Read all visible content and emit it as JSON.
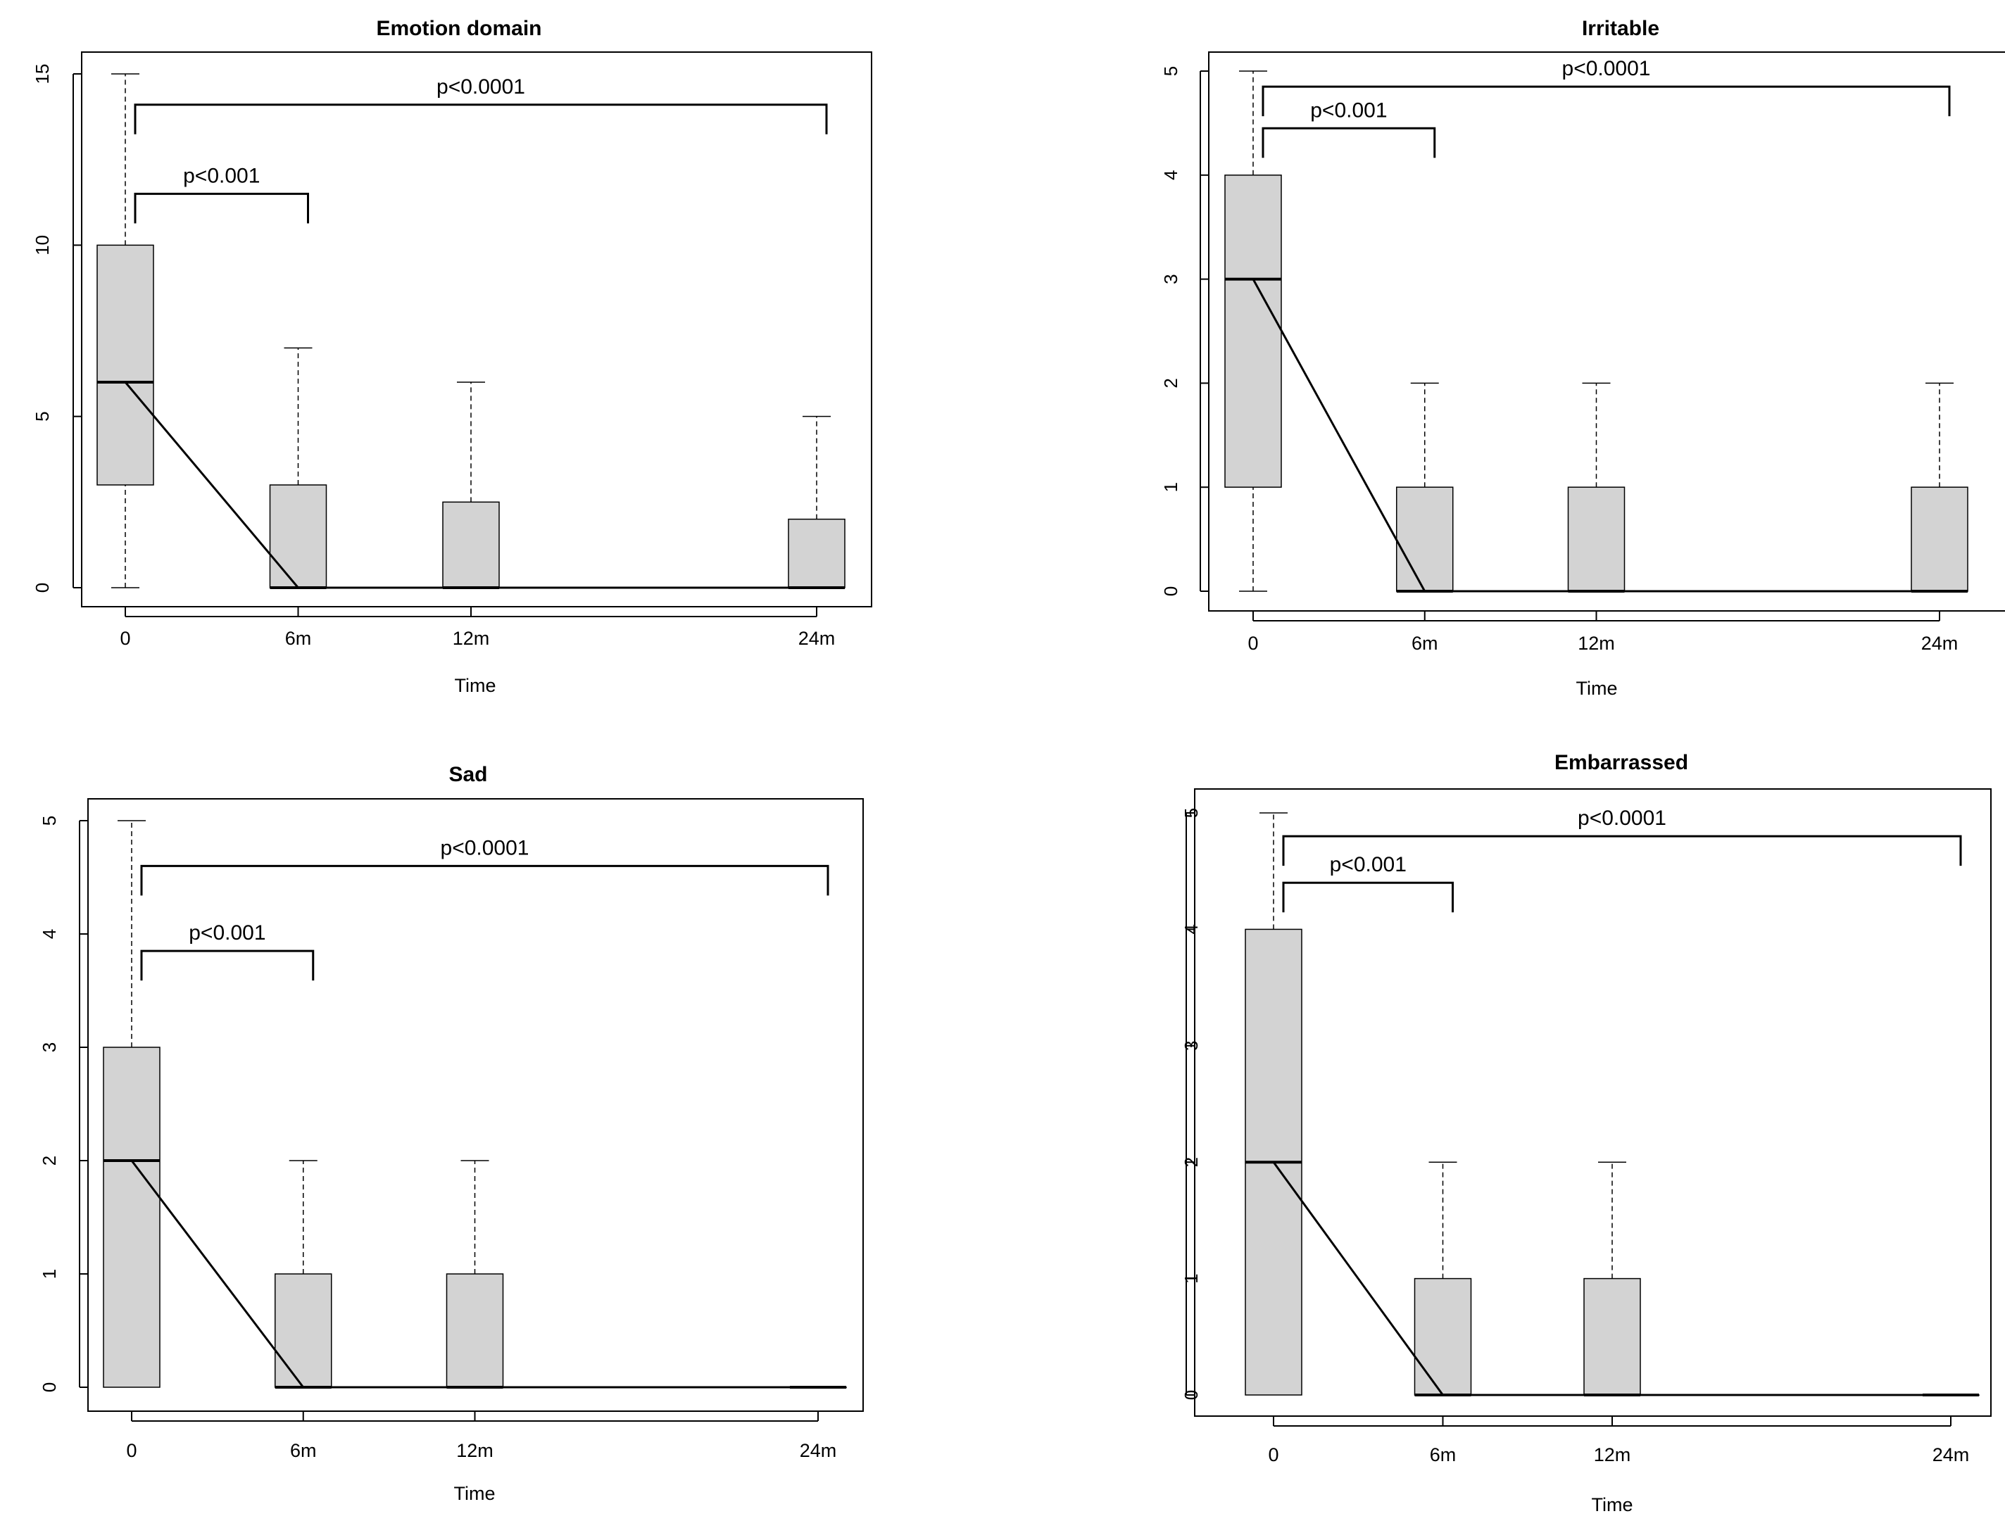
{
  "chart_data": [
    {
      "type": "boxplot",
      "title": "Emotion domain",
      "xlabel": "Time",
      "ylabel": "",
      "ylim": [
        0,
        15
      ],
      "yticks": [
        0,
        5,
        10,
        15
      ],
      "categories": [
        "0",
        "6m",
        "12m",
        "24m"
      ],
      "x_positions": [
        0,
        6,
        12,
        24
      ],
      "boxes": [
        {
          "min": 0,
          "q1": 3,
          "median": 6,
          "q3": 10,
          "max": 15
        },
        {
          "min": 0,
          "q1": 0,
          "median": 0,
          "q3": 3,
          "max": 7
        },
        {
          "min": 0,
          "q1": 0,
          "median": 0,
          "q3": 2.5,
          "max": 6
        },
        {
          "min": 0,
          "q1": 0,
          "median": 0,
          "q3": 2,
          "max": 5
        }
      ],
      "trend_line": [
        6,
        0,
        0,
        0
      ],
      "annotations": [
        {
          "text": "p<0.001",
          "from": 0,
          "to": 6,
          "level": 11.5
        },
        {
          "text": "p<0.0001",
          "from": 0,
          "to": 24,
          "level": 14.1
        }
      ]
    },
    {
      "type": "boxplot",
      "title": "Irritable",
      "xlabel": "Time",
      "ylabel": "",
      "ylim": [
        0,
        5
      ],
      "yticks": [
        0,
        1,
        2,
        3,
        4,
        5
      ],
      "categories": [
        "0",
        "6m",
        "12m",
        "24m"
      ],
      "x_positions": [
        0,
        6,
        12,
        24
      ],
      "boxes": [
        {
          "min": 0,
          "q1": 1,
          "median": 3,
          "q3": 4,
          "max": 5
        },
        {
          "min": 0,
          "q1": 0,
          "median": 0,
          "q3": 1,
          "max": 2
        },
        {
          "min": 0,
          "q1": 0,
          "median": 0,
          "q3": 1,
          "max": 2
        },
        {
          "min": 0,
          "q1": 0,
          "median": 0,
          "q3": 1,
          "max": 2
        }
      ],
      "trend_line": [
        3,
        0,
        0,
        0
      ],
      "annotations": [
        {
          "text": "p<0.001",
          "from": 0,
          "to": 6,
          "level": 4.45
        },
        {
          "text": "p<0.0001",
          "from": 0,
          "to": 24,
          "level": 4.85
        }
      ]
    },
    {
      "type": "boxplot",
      "title": "Sad",
      "xlabel": "Time",
      "ylabel": "",
      "ylim": [
        0,
        5
      ],
      "yticks": [
        0,
        1,
        2,
        3,
        4,
        5
      ],
      "categories": [
        "0",
        "6m",
        "12m",
        "24m"
      ],
      "x_positions": [
        0,
        6,
        12,
        24
      ],
      "boxes": [
        {
          "min": 0,
          "q1": 0,
          "median": 2,
          "q3": 3,
          "max": 5
        },
        {
          "min": 0,
          "q1": 0,
          "median": 0,
          "q3": 1,
          "max": 2
        },
        {
          "min": 0,
          "q1": 0,
          "median": 0,
          "q3": 1,
          "max": 2
        },
        {
          "min": 0,
          "q1": 0,
          "median": 0,
          "q3": 0,
          "max": 0
        }
      ],
      "trend_line": [
        2,
        0,
        0,
        0
      ],
      "annotations": [
        {
          "text": "p<0.001",
          "from": 0,
          "to": 6,
          "level": 3.85
        },
        {
          "text": "p<0.0001",
          "from": 0,
          "to": 24,
          "level": 4.6
        }
      ]
    },
    {
      "type": "boxplot",
      "title": "Embarrassed",
      "xlabel": "Time",
      "ylabel": "",
      "ylim": [
        0,
        5
      ],
      "yticks": [
        0,
        1,
        2,
        3,
        4,
        5
      ],
      "categories": [
        "0",
        "6m",
        "12m",
        "24m"
      ],
      "x_positions": [
        0,
        6,
        12,
        24
      ],
      "boxes": [
        {
          "min": 0,
          "q1": 0,
          "median": 2,
          "q3": 4,
          "max": 5
        },
        {
          "min": 0,
          "q1": 0,
          "median": 0,
          "q3": 1,
          "max": 2
        },
        {
          "min": 0,
          "q1": 0,
          "median": 0,
          "q3": 1,
          "max": 2
        },
        {
          "min": 0,
          "q1": 0,
          "median": 0,
          "q3": 0,
          "max": 0
        }
      ],
      "trend_line": [
        2,
        0,
        0,
        0
      ],
      "annotations": [
        {
          "text": "p<0.001",
          "from": 0,
          "to": 6,
          "level": 4.4
        },
        {
          "text": "p<0.0001",
          "from": 0,
          "to": 24,
          "level": 4.8
        }
      ]
    }
  ],
  "colors": {
    "box_fill": "#d3d3d3",
    "stroke": "#000000",
    "frame": "#000000"
  }
}
